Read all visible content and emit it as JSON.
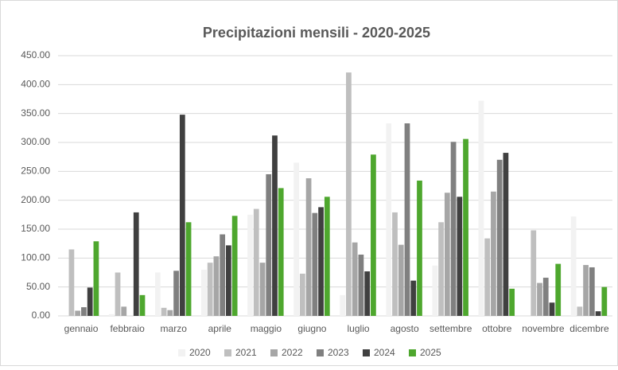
{
  "chart_data": {
    "type": "bar",
    "title": "Precipitazioni mensili - 2020-2025",
    "categories": [
      "gennaio",
      "febbraio",
      "marzo",
      "aprile",
      "maggio",
      "giugno",
      "luglio",
      "agosto",
      "settembre",
      "ottobre",
      "novembre",
      "dicembre"
    ],
    "series": [
      {
        "name": "2020",
        "color": "#f2f2f2",
        "values": [
          0,
          3,
          75,
          80,
          175,
          265,
          36,
          333,
          87,
          372,
          0,
          172
        ]
      },
      {
        "name": "2021",
        "color": "#bfbfbf",
        "values": [
          115,
          75,
          14,
          92,
          185,
          73,
          421,
          179,
          162,
          134,
          148,
          16
        ]
      },
      {
        "name": "2022",
        "color": "#a6a6a6",
        "values": [
          9,
          16,
          10,
          103,
          92,
          238,
          127,
          123,
          213,
          215,
          57,
          88
        ]
      },
      {
        "name": "2023",
        "color": "#808080",
        "values": [
          15,
          0,
          78,
          141,
          245,
          178,
          106,
          333,
          301,
          270,
          66,
          84
        ]
      },
      {
        "name": "2024",
        "color": "#404040",
        "values": [
          49,
          179,
          348,
          122,
          312,
          188,
          77,
          61,
          206,
          282,
          23,
          8
        ]
      },
      {
        "name": "2025",
        "color": "#4ea72e",
        "values": [
          129,
          36,
          162,
          173,
          221,
          206,
          279,
          234,
          306,
          47,
          90,
          50
        ]
      }
    ],
    "ylim": [
      0,
      450
    ],
    "yticks": [
      {
        "value": 0,
        "label": "0.00"
      },
      {
        "value": 50,
        "label": "50.00"
      },
      {
        "value": 100,
        "label": "100.00"
      },
      {
        "value": 150,
        "label": "150.00"
      },
      {
        "value": 200,
        "label": "200.00"
      },
      {
        "value": 250,
        "label": "250.00"
      },
      {
        "value": 300,
        "label": "300.00"
      },
      {
        "value": 350,
        "label": "350.00"
      },
      {
        "value": 400,
        "label": "400.00"
      },
      {
        "value": 450,
        "label": "450.00"
      }
    ],
    "legend": "bottom"
  }
}
